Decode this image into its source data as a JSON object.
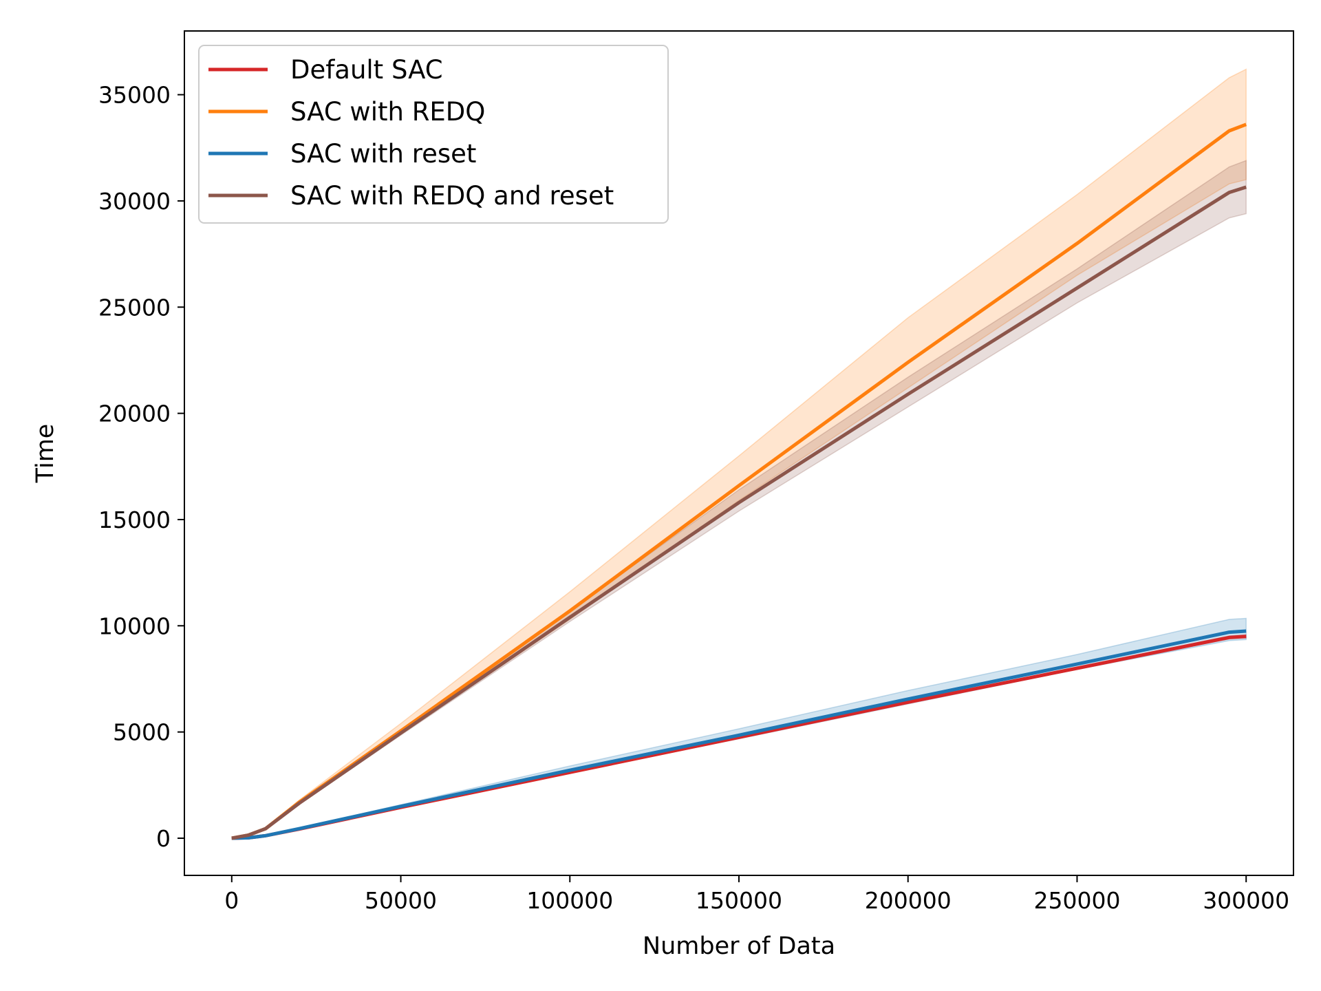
{
  "chart_data": {
    "type": "line",
    "title": "",
    "xlabel": "Number of Data",
    "ylabel": "Time",
    "xlim": [
      -14000,
      314000
    ],
    "ylim": [
      -1750,
      38000
    ],
    "grid": false,
    "legend_position": "top-left",
    "x_ticks": [
      0,
      50000,
      100000,
      150000,
      200000,
      250000,
      300000
    ],
    "x_tick_labels": [
      "0",
      "50000",
      "100000",
      "150000",
      "200000",
      "250000",
      "300000"
    ],
    "y_ticks": [
      0,
      5000,
      10000,
      15000,
      20000,
      25000,
      30000,
      35000
    ],
    "y_tick_labels": [
      "0",
      "5000",
      "10000",
      "15000",
      "20000",
      "25000",
      "30000",
      "35000"
    ],
    "series": [
      {
        "name": "Default SAC",
        "color": "#d62728",
        "x": [
          0,
          5000,
          10000,
          20000,
          50000,
          100000,
          150000,
          200000,
          250000,
          295000,
          300000
        ],
        "values": [
          0,
          20,
          120,
          430,
          1450,
          3100,
          4750,
          6400,
          8000,
          9450,
          9500
        ],
        "band_lower": [
          0,
          20,
          120,
          430,
          1440,
          3080,
          4720,
          6350,
          7950,
          9380,
          9420
        ],
        "band_upper": [
          0,
          20,
          120,
          430,
          1460,
          3120,
          4780,
          6450,
          8050,
          9520,
          9580
        ]
      },
      {
        "name": "SAC with REDQ",
        "color": "#ff7f0e",
        "x": [
          0,
          5000,
          10000,
          20000,
          50000,
          100000,
          150000,
          200000,
          250000,
          295000,
          300000
        ],
        "values": [
          0,
          150,
          450,
          1700,
          5050,
          10700,
          16600,
          22400,
          28000,
          33300,
          33600
        ],
        "band_lower": [
          0,
          140,
          430,
          1650,
          4900,
          10300,
          15900,
          21200,
          26500,
          30800,
          31000
        ],
        "band_upper": [
          0,
          160,
          470,
          1800,
          5400,
          11600,
          18000,
          24500,
          30300,
          35800,
          36200
        ]
      },
      {
        "name": "SAC with reset",
        "color": "#1f77b4",
        "x": [
          0,
          5000,
          10000,
          20000,
          50000,
          100000,
          150000,
          200000,
          250000,
          295000,
          300000
        ],
        "values": [
          0,
          20,
          120,
          450,
          1500,
          3200,
          4850,
          6550,
          8200,
          9700,
          9750
        ],
        "band_lower": [
          0,
          20,
          110,
          420,
          1430,
          3080,
          4680,
          6320,
          7950,
          9300,
          9350
        ],
        "band_upper": [
          0,
          25,
          130,
          480,
          1580,
          3400,
          5150,
          6950,
          8650,
          10300,
          10350
        ]
      },
      {
        "name": "SAC with REDQ and reset",
        "color": "#8c564b",
        "x": [
          0,
          5000,
          10000,
          20000,
          50000,
          100000,
          150000,
          200000,
          250000,
          295000,
          300000
        ],
        "values": [
          0,
          150,
          450,
          1650,
          4950,
          10400,
          15800,
          20900,
          25900,
          30400,
          30650
        ],
        "band_lower": [
          0,
          140,
          430,
          1600,
          4850,
          10200,
          15400,
          20300,
          25200,
          29200,
          29400
        ],
        "band_upper": [
          0,
          160,
          470,
          1700,
          5100,
          10700,
          16400,
          21700,
          26800,
          31600,
          31900
        ]
      }
    ]
  }
}
